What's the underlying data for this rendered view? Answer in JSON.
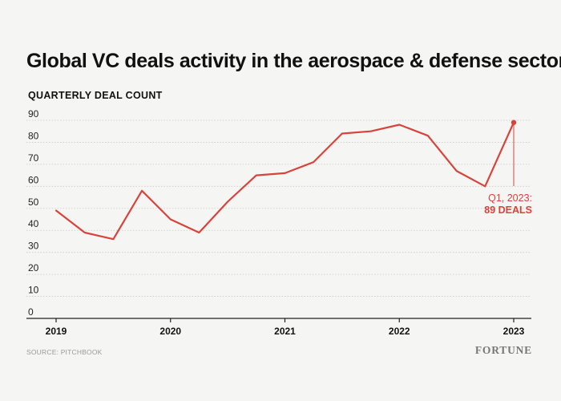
{
  "source": "SOURCE: PITCHBOOK",
  "brand": "FORTUNE",
  "chart_data": {
    "type": "line",
    "title": "Global VC deals activity in the aerospace & defense sector",
    "subtitle": "QUARTERLY DEAL COUNT",
    "xlabel": "",
    "ylabel": "",
    "ylim": [
      0,
      90
    ],
    "yticks": [
      0,
      10,
      20,
      30,
      40,
      50,
      60,
      70,
      80,
      90
    ],
    "xticks": [
      "2019",
      "2020",
      "2021",
      "2022",
      "2023"
    ],
    "grid": true,
    "line_color": "#d9433b",
    "x": [
      "Q1 2019",
      "Q2 2019",
      "Q3 2019",
      "Q4 2019",
      "Q1 2020",
      "Q2 2020",
      "Q3 2020",
      "Q4 2020",
      "Q1 2021",
      "Q2 2021",
      "Q3 2021",
      "Q4 2021",
      "Q1 2022",
      "Q2 2022",
      "Q3 2022",
      "Q4 2022",
      "Q1 2023"
    ],
    "series": [
      {
        "values": [
          49,
          39,
          36,
          58,
          45,
          39,
          53,
          65,
          66,
          71,
          84,
          85,
          88,
          83,
          67,
          60,
          89
        ]
      }
    ],
    "annotation": {
      "line1": "Q1, 2023:",
      "line2": "89 DEALS"
    }
  }
}
